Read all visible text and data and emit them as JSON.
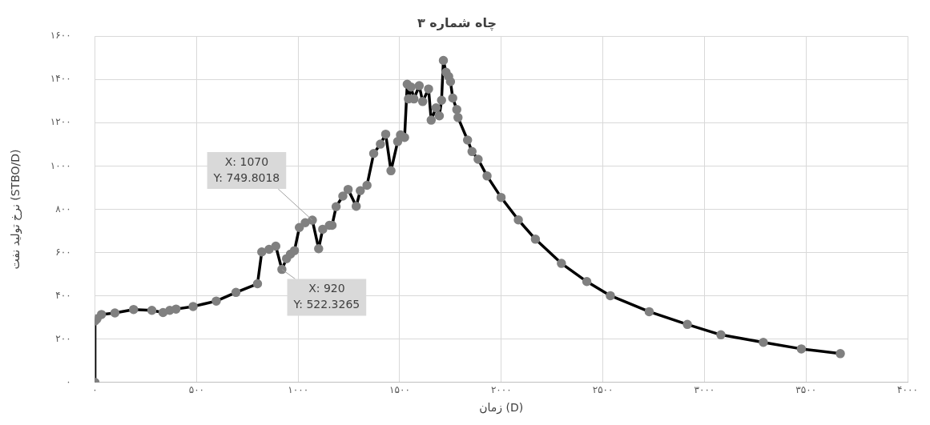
{
  "chart_data": {
    "type": "line",
    "title": "چاه شماره ۳",
    "xlabel": "زمان (D)",
    "ylabel": "نرخ تولید نفت (STBO/D)",
    "series": [
      {
        "color": "#000000",
        "x": [
          0,
          0,
          10,
          32,
          98,
          190,
          280,
          335,
          368,
          399,
          483,
          597,
          694,
          800,
          821,
          857,
          890,
          920,
          943,
          962,
          982,
          1006,
          1035,
          1070,
          1101,
          1121,
          1154,
          1167,
          1187,
          1220,
          1246,
          1286,
          1306,
          1339,
          1372,
          1405,
          1431,
          1457,
          1490,
          1504,
          1524,
          1537,
          1543,
          1556,
          1570,
          1596,
          1613,
          1642,
          1655,
          1679,
          1695,
          1706,
          1715,
          1728,
          1741,
          1750,
          1761,
          1781,
          1787,
          1834,
          1856,
          1886,
          1930,
          1999,
          2084,
          2168,
          2296,
          2421,
          2537,
          2728,
          2916,
          3081,
          3290,
          3477,
          3669
        ],
        "values": [
          0,
          284,
          294,
          314,
          321,
          337,
          333,
          323,
          333,
          339,
          351,
          376,
          416,
          456,
          603,
          615,
          630,
          522.3265,
          572,
          593,
          609,
          716,
          738,
          749.8018,
          618,
          708,
          726,
          726,
          812,
          861,
          892,
          814,
          886,
          911,
          1058,
          1101,
          1147,
          978,
          1113,
          1144,
          1132,
          1378,
          1310,
          1365,
          1310,
          1371,
          1298,
          1356,
          1212,
          1269,
          1232,
          1304,
          1488,
          1433,
          1414,
          1390,
          1314,
          1261,
          1224,
          1120,
          1067,
          1031,
          954,
          855,
          751,
          662,
          550,
          466,
          401,
          327,
          268,
          220,
          185,
          155,
          133
        ]
      }
    ],
    "xlim": [
      0,
      4000
    ],
    "ylim": [
      0,
      1600
    ],
    "xticks": [
      {
        "value": 0,
        "label": "۰"
      },
      {
        "value": 500,
        "label": "۵۰۰"
      },
      {
        "value": 1000,
        "label": "۱۰۰۰"
      },
      {
        "value": 1500,
        "label": "۱۵۰۰"
      },
      {
        "value": 2000,
        "label": "۲۰۰۰"
      },
      {
        "value": 2500,
        "label": "۲۵۰۰"
      },
      {
        "value": 3000,
        "label": "۳۰۰۰"
      },
      {
        "value": 3500,
        "label": "۳۵۰۰"
      },
      {
        "value": 4000,
        "label": "۴۰۰۰"
      }
    ],
    "yticks": [
      {
        "value": 0,
        "label": "۰"
      },
      {
        "value": 200,
        "label": "۲۰۰"
      },
      {
        "value": 400,
        "label": "۴۰۰"
      },
      {
        "value": 600,
        "label": "۶۰۰"
      },
      {
        "value": 800,
        "label": "۸۰۰"
      },
      {
        "value": 1000,
        "label": "۱۰۰۰"
      },
      {
        "value": 1200,
        "label": "۱۲۰۰"
      },
      {
        "value": 1400,
        "label": "۱۴۰۰"
      },
      {
        "value": 1600,
        "label": "۱۶۰۰"
      }
    ],
    "grid": true,
    "marker": "circle",
    "line_style": "solid",
    "annotations": [
      {
        "text": "X: 1070\nY: 749.8018",
        "x": 1070,
        "y": 749.8018
      },
      {
        "text": "X: 920\nY: 522.3265",
        "x": 920,
        "y": 522.3265
      }
    ]
  }
}
